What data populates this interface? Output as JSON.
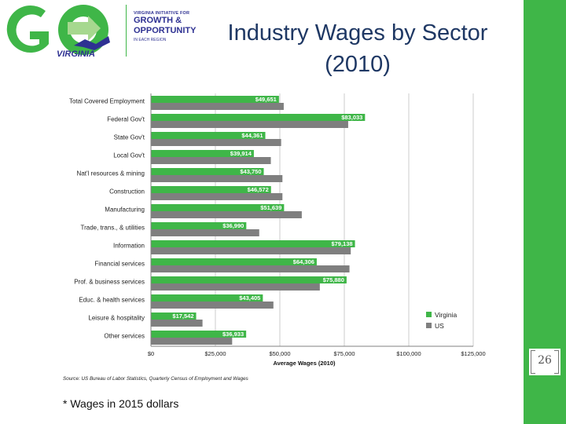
{
  "logo": {
    "initiative_line": "VIRGINIA INITIATIVE FOR",
    "growth": "GROWTH &",
    "opportunity": "OPPORTUNITY",
    "region_line": "IN EACH REGION",
    "virginia": "VIRGINIA"
  },
  "slide": {
    "title_line1": "Industry Wages by Sector",
    "title_line2": "(2010)",
    "footnote": "* Wages in 2015 dollars",
    "page_number": "26",
    "source": "Source: US Bureau of Labor Statistics, Quarterly Census of Employment and Wages"
  },
  "colors": {
    "virginia": "#3fb648",
    "us": "#7f7f7f",
    "accent": "#3fb648"
  },
  "chart_data": {
    "type": "bar",
    "orientation": "horizontal",
    "title": "",
    "xlabel": "Average Wages (2010)",
    "ylabel": "",
    "xlim": [
      0,
      125000
    ],
    "ticks": [
      0,
      25000,
      50000,
      75000,
      100000,
      125000
    ],
    "tick_labels": [
      "$0",
      "$25,000",
      "$50,000",
      "$75,000",
      "$100,000",
      "$125,000"
    ],
    "grid": "vertical",
    "legend_position": "right",
    "categories": [
      "Total Covered Employment",
      "Federal Gov't",
      "State Gov't",
      "Local Gov't",
      "Nat'l resources & mining",
      "Construction",
      "Manufacturing",
      "Trade, trans., & utilities",
      "Information",
      "Financial services",
      "Prof. & business services",
      "Educ. & health services",
      "Leisure & hospitality",
      "Other services"
    ],
    "series": [
      {
        "name": "Virginia",
        "values": [
          49651,
          83033,
          44361,
          39914,
          43750,
          46572,
          51639,
          36990,
          79138,
          64306,
          75880,
          43405,
          17542,
          36933
        ],
        "data_labels": [
          "$49,651",
          "$83,033",
          "$44,361",
          "$39,914",
          "$43,750",
          "$46,572",
          "$51,639",
          "$36,990",
          "$79,138",
          "$64,306",
          "$75,880",
          "$43,405",
          "$17,542",
          "$36,933"
        ]
      },
      {
        "name": "US",
        "values": [
          51500,
          76500,
          50500,
          46500,
          51000,
          51000,
          58500,
          42000,
          77500,
          77000,
          65500,
          47500,
          20000,
          31500
        ]
      }
    ]
  }
}
